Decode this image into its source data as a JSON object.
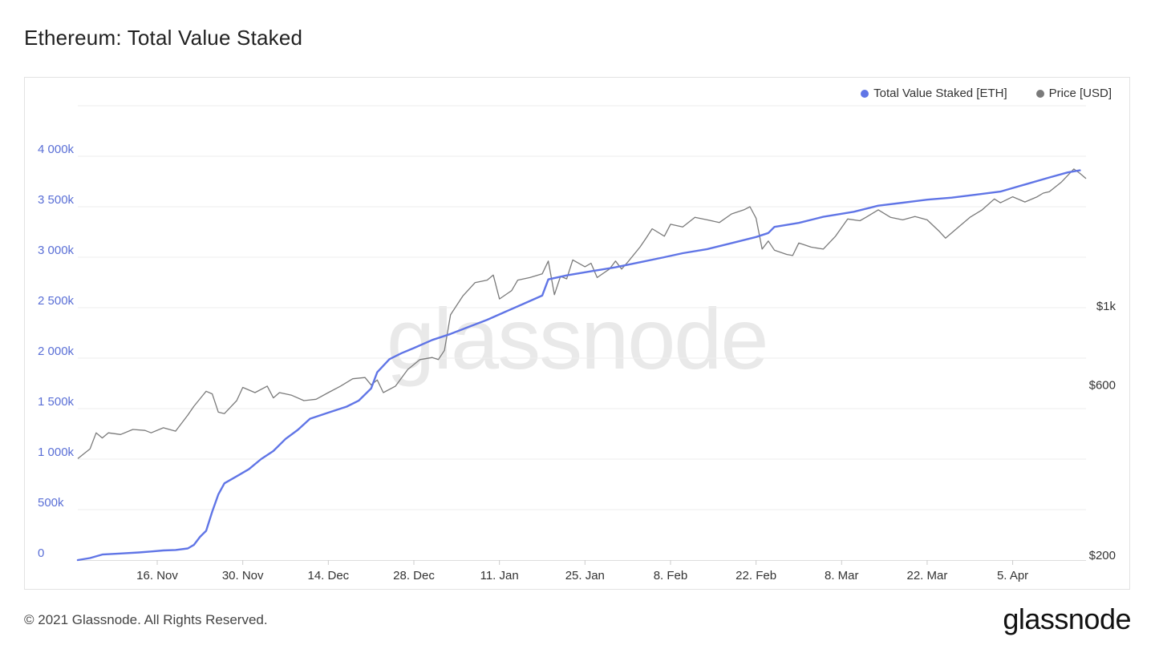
{
  "page": {
    "title": "Ethereum: Total Value Staked",
    "copyright": "© 2021 Glassnode. All Rights Reserved.",
    "brand": "glassnode",
    "watermark": "glassnode"
  },
  "colors": {
    "staked": "#6075e6",
    "price": "#7a7a7a",
    "left_axis_text": "#5a6fd6",
    "right_axis_text": "#333333",
    "grid": "#eeeeee"
  },
  "legend": [
    {
      "label": "Total Value Staked [ETH]",
      "color": "#6075e6"
    },
    {
      "label": "Price [USD]",
      "color": "#7a7a7a"
    }
  ],
  "chart_data": {
    "type": "line",
    "title": "Ethereum: Total Value Staked",
    "legend_position": "top-right",
    "grid": true,
    "x_ticks": [
      "16. Nov",
      "30. Nov",
      "14. Dec",
      "28. Dec",
      "11. Jan",
      "25. Jan",
      "8. Feb",
      "22. Feb",
      "8. Mar",
      "22. Mar",
      "5. Apr"
    ],
    "x_range": [
      "2020-11-03",
      "2021-04-17"
    ],
    "y_left": {
      "label": "Total Value Staked [ETH]",
      "ticks": [
        "0",
        "500k",
        "1 000k",
        "1 500k",
        "2 000k",
        "2 500k",
        "3 000k",
        "3 500k",
        "4 000k"
      ],
      "tick_values": [
        0,
        500000,
        1000000,
        1500000,
        2000000,
        2500000,
        3000000,
        3500000,
        4000000
      ],
      "range": [
        0,
        4500000
      ]
    },
    "y_right": {
      "label": "Price [USD]",
      "scale": "log",
      "ticks": [
        "$200",
        "$600",
        "$1k"
      ],
      "tick_values": [
        200,
        600,
        1000
      ]
    },
    "series": [
      {
        "name": "Total Value Staked [ETH]",
        "axis": "left",
        "points": [
          [
            "2020-11-03",
            0
          ],
          [
            "2020-11-05",
            20000
          ],
          [
            "2020-11-07",
            55000
          ],
          [
            "2020-11-10",
            65000
          ],
          [
            "2020-11-13",
            75000
          ],
          [
            "2020-11-15",
            85000
          ],
          [
            "2020-11-17",
            95000
          ],
          [
            "2020-11-19",
            100000
          ],
          [
            "2020-11-21",
            115000
          ],
          [
            "2020-11-22",
            150000
          ],
          [
            "2020-11-23",
            230000
          ],
          [
            "2020-11-24",
            290000
          ],
          [
            "2020-11-25",
            480000
          ],
          [
            "2020-11-26",
            650000
          ],
          [
            "2020-11-27",
            760000
          ],
          [
            "2020-11-29",
            830000
          ],
          [
            "2020-12-01",
            900000
          ],
          [
            "2020-12-03",
            1000000
          ],
          [
            "2020-12-05",
            1080000
          ],
          [
            "2020-12-07",
            1200000
          ],
          [
            "2020-12-09",
            1290000
          ],
          [
            "2020-12-11",
            1400000
          ],
          [
            "2020-12-14",
            1460000
          ],
          [
            "2020-12-17",
            1520000
          ],
          [
            "2020-12-19",
            1580000
          ],
          [
            "2020-12-21",
            1700000
          ],
          [
            "2020-12-22",
            1860000
          ],
          [
            "2020-12-24",
            1990000
          ],
          [
            "2020-12-26",
            2050000
          ],
          [
            "2020-12-28",
            2100000
          ],
          [
            "2020-12-31",
            2180000
          ],
          [
            "2021-01-03",
            2240000
          ],
          [
            "2021-01-06",
            2310000
          ],
          [
            "2021-01-09",
            2380000
          ],
          [
            "2021-01-12",
            2460000
          ],
          [
            "2021-01-15",
            2540000
          ],
          [
            "2021-01-18",
            2620000
          ],
          [
            "2021-01-19",
            2780000
          ],
          [
            "2021-01-22",
            2820000
          ],
          [
            "2021-01-26",
            2860000
          ],
          [
            "2021-01-30",
            2900000
          ],
          [
            "2021-02-03",
            2950000
          ],
          [
            "2021-02-07",
            3000000
          ],
          [
            "2021-02-10",
            3040000
          ],
          [
            "2021-02-14",
            3080000
          ],
          [
            "2021-02-18",
            3140000
          ],
          [
            "2021-02-22",
            3200000
          ],
          [
            "2021-02-24",
            3240000
          ],
          [
            "2021-02-25",
            3300000
          ],
          [
            "2021-03-01",
            3340000
          ],
          [
            "2021-03-05",
            3400000
          ],
          [
            "2021-03-10",
            3450000
          ],
          [
            "2021-03-14",
            3510000
          ],
          [
            "2021-03-18",
            3540000
          ],
          [
            "2021-03-22",
            3570000
          ],
          [
            "2021-03-26",
            3590000
          ],
          [
            "2021-03-30",
            3620000
          ],
          [
            "2021-04-03",
            3650000
          ],
          [
            "2021-04-07",
            3720000
          ],
          [
            "2021-04-11",
            3790000
          ],
          [
            "2021-04-14",
            3840000
          ],
          [
            "2021-04-16",
            3860000
          ]
        ]
      },
      {
        "name": "Price [USD]",
        "axis": "right",
        "points": [
          [
            "2020-11-03",
            385
          ],
          [
            "2020-11-05",
            410
          ],
          [
            "2020-11-06",
            455
          ],
          [
            "2020-11-07",
            440
          ],
          [
            "2020-11-08",
            455
          ],
          [
            "2020-11-10",
            450
          ],
          [
            "2020-11-12",
            465
          ],
          [
            "2020-11-14",
            462
          ],
          [
            "2020-11-15",
            455
          ],
          [
            "2020-11-17",
            470
          ],
          [
            "2020-11-19",
            460
          ],
          [
            "2020-11-21",
            510
          ],
          [
            "2020-11-22",
            540
          ],
          [
            "2020-11-24",
            595
          ],
          [
            "2020-11-25",
            585
          ],
          [
            "2020-11-26",
            520
          ],
          [
            "2020-11-27",
            515
          ],
          [
            "2020-11-29",
            560
          ],
          [
            "2020-11-30",
            610
          ],
          [
            "2020-12-02",
            590
          ],
          [
            "2020-12-04",
            615
          ],
          [
            "2020-12-05",
            570
          ],
          [
            "2020-12-06",
            590
          ],
          [
            "2020-12-08",
            580
          ],
          [
            "2020-12-10",
            560
          ],
          [
            "2020-12-12",
            565
          ],
          [
            "2020-12-14",
            590
          ],
          [
            "2020-12-16",
            615
          ],
          [
            "2020-12-18",
            645
          ],
          [
            "2020-12-20",
            650
          ],
          [
            "2020-12-21",
            620
          ],
          [
            "2020-12-22",
            640
          ],
          [
            "2020-12-23",
            590
          ],
          [
            "2020-12-25",
            615
          ],
          [
            "2020-12-27",
            685
          ],
          [
            "2020-12-29",
            730
          ],
          [
            "2020-12-31",
            740
          ],
          [
            "2021-01-01",
            730
          ],
          [
            "2021-01-02",
            775
          ],
          [
            "2021-01-03",
            975
          ],
          [
            "2021-01-05",
            1100
          ],
          [
            "2021-01-07",
            1200
          ],
          [
            "2021-01-09",
            1220
          ],
          [
            "2021-01-10",
            1260
          ],
          [
            "2021-01-11",
            1080
          ],
          [
            "2021-01-13",
            1140
          ],
          [
            "2021-01-14",
            1220
          ],
          [
            "2021-01-16",
            1240
          ],
          [
            "2021-01-18",
            1270
          ],
          [
            "2021-01-19",
            1380
          ],
          [
            "2021-01-20",
            1110
          ],
          [
            "2021-01-21",
            1250
          ],
          [
            "2021-01-22",
            1230
          ],
          [
            "2021-01-23",
            1390
          ],
          [
            "2021-01-25",
            1330
          ],
          [
            "2021-01-26",
            1360
          ],
          [
            "2021-01-27",
            1240
          ],
          [
            "2021-01-29",
            1310
          ],
          [
            "2021-01-30",
            1380
          ],
          [
            "2021-01-31",
            1310
          ],
          [
            "2021-02-01",
            1370
          ],
          [
            "2021-02-03",
            1510
          ],
          [
            "2021-02-04",
            1600
          ],
          [
            "2021-02-05",
            1700
          ],
          [
            "2021-02-07",
            1620
          ],
          [
            "2021-02-08",
            1750
          ],
          [
            "2021-02-10",
            1720
          ],
          [
            "2021-02-12",
            1830
          ],
          [
            "2021-02-14",
            1800
          ],
          [
            "2021-02-16",
            1770
          ],
          [
            "2021-02-18",
            1870
          ],
          [
            "2021-02-20",
            1920
          ],
          [
            "2021-02-21",
            1960
          ],
          [
            "2021-02-22",
            1820
          ],
          [
            "2021-02-23",
            1490
          ],
          [
            "2021-02-24",
            1570
          ],
          [
            "2021-02-25",
            1480
          ],
          [
            "2021-02-27",
            1440
          ],
          [
            "2021-02-28",
            1430
          ],
          [
            "2021-03-01",
            1550
          ],
          [
            "2021-03-03",
            1510
          ],
          [
            "2021-03-05",
            1490
          ],
          [
            "2021-03-07",
            1620
          ],
          [
            "2021-03-09",
            1810
          ],
          [
            "2021-03-11",
            1790
          ],
          [
            "2021-03-12",
            1830
          ],
          [
            "2021-03-14",
            1920
          ],
          [
            "2021-03-16",
            1830
          ],
          [
            "2021-03-18",
            1800
          ],
          [
            "2021-03-20",
            1840
          ],
          [
            "2021-03-22",
            1800
          ],
          [
            "2021-03-24",
            1670
          ],
          [
            "2021-03-25",
            1600
          ],
          [
            "2021-03-27",
            1710
          ],
          [
            "2021-03-29",
            1830
          ],
          [
            "2021-03-31",
            1920
          ],
          [
            "2021-04-02",
            2060
          ],
          [
            "2021-04-03",
            2010
          ],
          [
            "2021-04-05",
            2090
          ],
          [
            "2021-04-07",
            2020
          ],
          [
            "2021-04-09",
            2090
          ],
          [
            "2021-04-10",
            2140
          ],
          [
            "2021-04-11",
            2160
          ],
          [
            "2021-04-13",
            2300
          ],
          [
            "2021-04-15",
            2500
          ],
          [
            "2021-04-16",
            2430
          ],
          [
            "2021-04-17",
            2350
          ]
        ]
      }
    ]
  }
}
